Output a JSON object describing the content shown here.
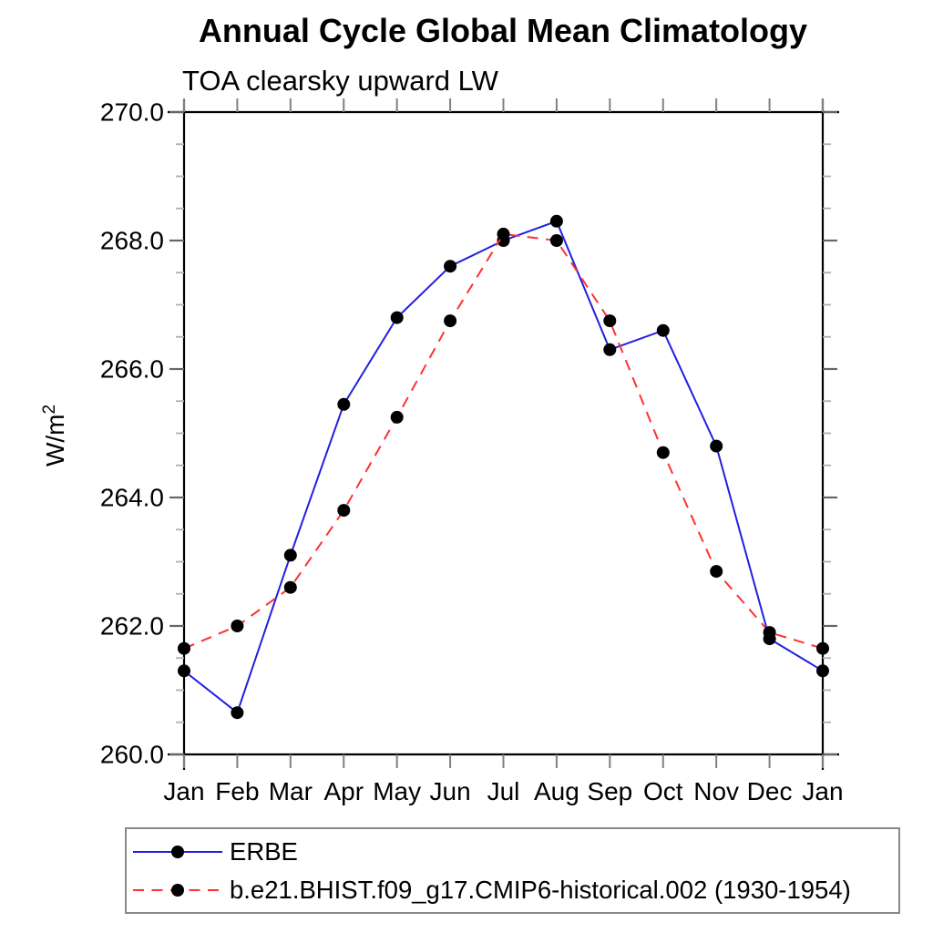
{
  "page": {
    "background": "#ffffff"
  },
  "chart": {
    "title": "Annual Cycle Global Mean Climatology",
    "subtitle": "TOA clearsky upward LW",
    "ylabel_base": "W/m",
    "ylabel_exp": "2"
  },
  "legend": {
    "entries": [
      {
        "label": "ERBE",
        "color": "#2020e0",
        "style": "solid",
        "marker": "black-circle"
      },
      {
        "label": "b.e21.BHIST.f09_g17.CMIP6-historical.002 (1930-1954)",
        "color": "#ff3030",
        "style": "dashed",
        "marker": "black-circle"
      }
    ]
  },
  "chart_data": {
    "type": "line",
    "title": "Annual Cycle Global Mean Climatology",
    "subtitle": "TOA clearsky upward LW",
    "xlabel": "",
    "ylabel": "W/m²",
    "categories": [
      "Jan",
      "Feb",
      "Mar",
      "Apr",
      "May",
      "Jun",
      "Jul",
      "Aug",
      "Sep",
      "Oct",
      "Nov",
      "Dec",
      "Jan"
    ],
    "series": [
      {
        "name": "ERBE",
        "color": "#2020e0",
        "line_style": "solid",
        "marker": "black-circle",
        "values": [
          261.3,
          260.65,
          263.1,
          265.45,
          266.8,
          267.6,
          268.0,
          268.3,
          266.3,
          266.6,
          264.8,
          261.8,
          261.3
        ]
      },
      {
        "name": "b.e21.BHIST.f09_g17.CMIP6-historical.002 (1930-1954)",
        "color": "#ff3030",
        "line_style": "dashed",
        "marker": "black-circle",
        "values": [
          261.65,
          262.0,
          262.6,
          263.8,
          265.25,
          266.75,
          268.1,
          268.0,
          266.75,
          264.7,
          262.85,
          261.9,
          261.65
        ]
      }
    ],
    "ylim": [
      260,
      270
    ],
    "yticks_major": [
      260,
      262,
      264,
      266,
      268,
      270
    ],
    "ytick_labels": [
      "260.0",
      "262.0",
      "264.0",
      "266.0",
      "268.0",
      "270.0"
    ],
    "ytick_minor_step": 0.5,
    "marker_color": "#000000",
    "grid": false,
    "legend_position": "bottom-left-box"
  }
}
